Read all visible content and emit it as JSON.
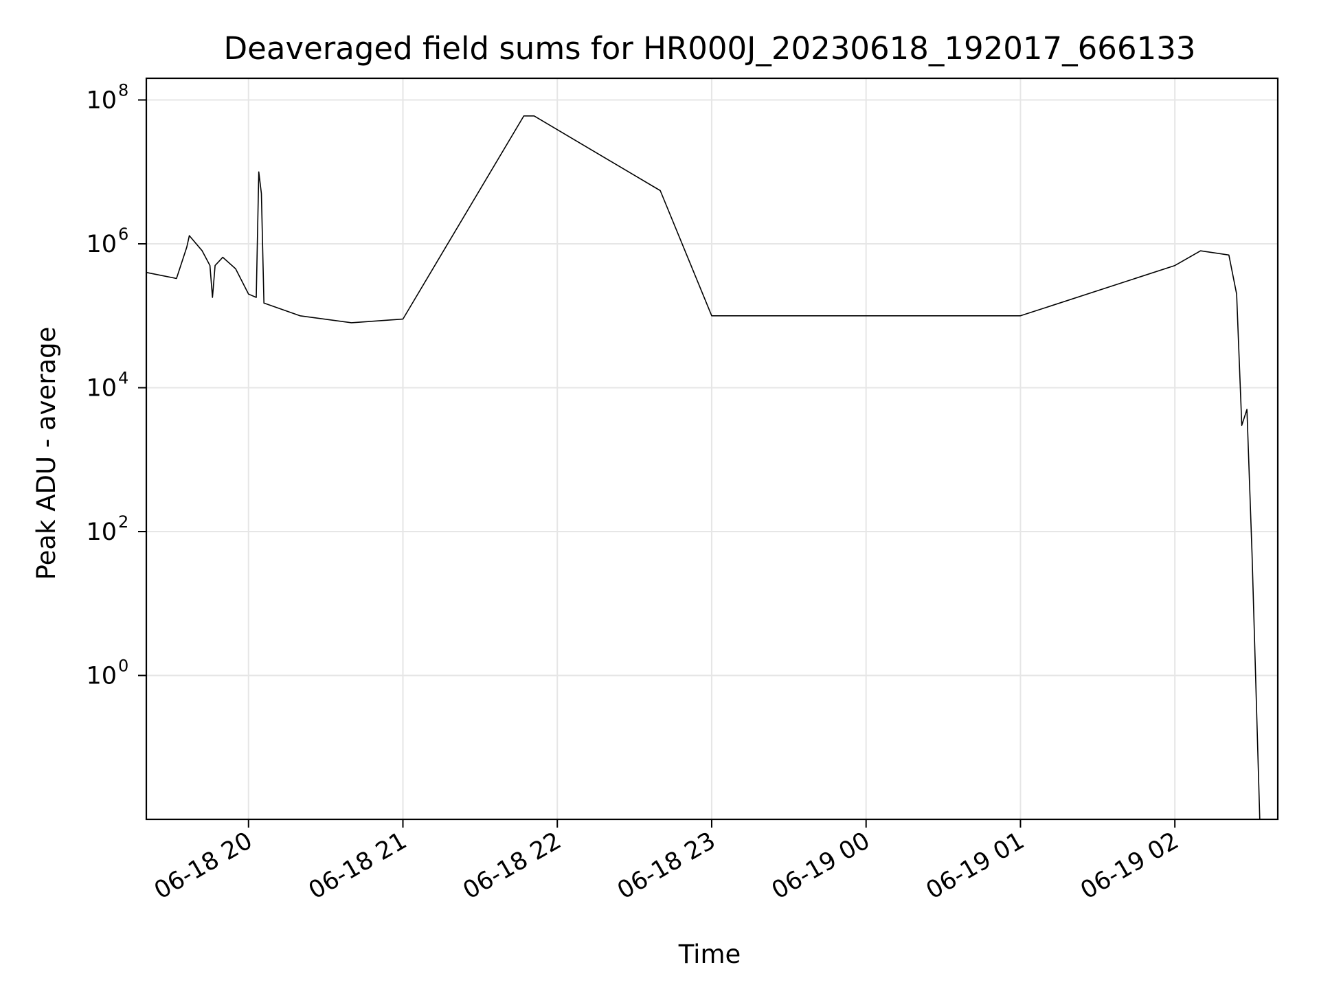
{
  "chart_data": {
    "type": "line",
    "title": "Deaveraged field sums for HR000J_20230618_192017_666133",
    "xlabel": "Time",
    "ylabel": "Peak ADU - average",
    "x_type": "datetime",
    "x_range": [
      "2023-06-18T19:20:17",
      "2023-06-19T02:40:00"
    ],
    "y_scale": "log",
    "y_range": [
      0.01,
      200000000.0
    ],
    "x_ticks": [
      {
        "time": "2023-06-18T20:00:00",
        "label": "06-18 20"
      },
      {
        "time": "2023-06-18T21:00:00",
        "label": "06-18 21"
      },
      {
        "time": "2023-06-18T22:00:00",
        "label": "06-18 22"
      },
      {
        "time": "2023-06-18T23:00:00",
        "label": "06-18 23"
      },
      {
        "time": "2023-06-19T00:00:00",
        "label": "06-19 00"
      },
      {
        "time": "2023-06-19T01:00:00",
        "label": "06-19 01"
      },
      {
        "time": "2023-06-19T02:00:00",
        "label": "06-19 02"
      }
    ],
    "y_ticks": [
      {
        "value": 1,
        "base": "10",
        "exp": "0"
      },
      {
        "value": 100,
        "base": "10",
        "exp": "2"
      },
      {
        "value": 10000,
        "base": "10",
        "exp": "4"
      },
      {
        "value": 1000000,
        "base": "10",
        "exp": "6"
      },
      {
        "value": 100000000,
        "base": "10",
        "exp": "8"
      }
    ],
    "grid": true,
    "line_color": "#000000",
    "series": [
      {
        "points": [
          [
            "2023-06-18T19:20:17",
            400000
          ],
          [
            "2023-06-18T19:32:00",
            330000
          ],
          [
            "2023-06-18T19:36:00",
            900000
          ],
          [
            "2023-06-18T19:37:00",
            1300000
          ],
          [
            "2023-06-18T19:42:00",
            800000
          ],
          [
            "2023-06-18T19:45:00",
            500000
          ],
          [
            "2023-06-18T19:46:00",
            180000
          ],
          [
            "2023-06-18T19:47:00",
            500000
          ],
          [
            "2023-06-18T19:50:00",
            650000
          ],
          [
            "2023-06-18T19:55:00",
            450000
          ],
          [
            "2023-06-18T20:00:00",
            200000
          ],
          [
            "2023-06-18T20:03:00",
            180000
          ],
          [
            "2023-06-18T20:04:00",
            10000000
          ],
          [
            "2023-06-18T20:05:00",
            5000000
          ],
          [
            "2023-06-18T20:06:00",
            150000
          ],
          [
            "2023-06-18T20:20:00",
            100000
          ],
          [
            "2023-06-18T20:40:00",
            80000
          ],
          [
            "2023-06-18T21:00:00",
            90000
          ],
          [
            "2023-06-18T21:47:00",
            60000000
          ],
          [
            "2023-06-18T21:51:00",
            60000000
          ],
          [
            "2023-06-18T22:40:00",
            5500000
          ],
          [
            "2023-06-18T23:00:00",
            100000
          ],
          [
            "2023-06-19T00:00:00",
            100000
          ],
          [
            "2023-06-19T01:00:00",
            100000
          ],
          [
            "2023-06-19T02:00:00",
            500000
          ],
          [
            "2023-06-19T02:10:00",
            800000
          ],
          [
            "2023-06-19T02:21:00",
            700000
          ],
          [
            "2023-06-19T02:24:00",
            200000
          ],
          [
            "2023-06-19T02:26:00",
            3000
          ],
          [
            "2023-06-19T02:28:00",
            5000
          ],
          [
            "2023-06-19T02:29:00",
            500
          ],
          [
            "2023-06-19T02:30:00",
            50
          ],
          [
            "2023-06-19T02:33:00",
            0.01
          ]
        ]
      }
    ]
  }
}
